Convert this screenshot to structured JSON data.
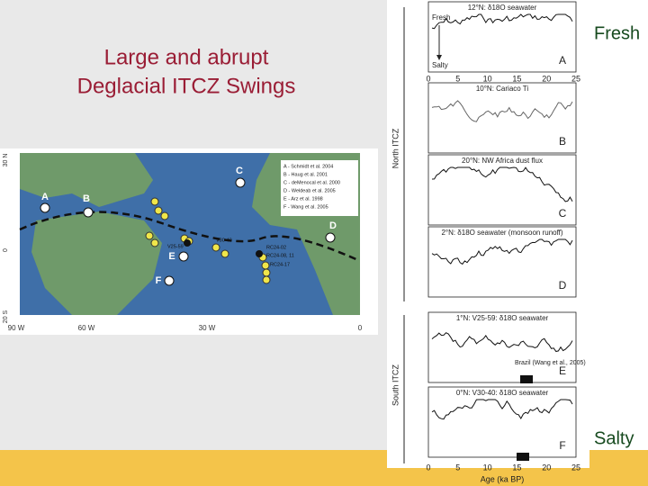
{
  "slide": {
    "title_lines": [
      "Large and abrupt",
      "Deglacial ITCZ Swings"
    ],
    "fresh": "Fresh",
    "salty": "Salty",
    "map": {
      "sites": [
        "A",
        "B",
        "C",
        "D",
        "E",
        "F"
      ],
      "legend": [
        "A - Schmidt et al. 2004",
        "B - Haug et al. 2001",
        "C - deMenocal et al. 2000",
        "D - Weldeab et al. 2005",
        "E - Arz et al. 1998",
        "F - Wang et al. 2005"
      ],
      "cores": [
        "V30-40",
        "V25-59",
        "RC24-02",
        "RC24-08, 11",
        "RC24-17"
      ],
      "lat_ticks": [
        "30 N",
        "0",
        "20 S"
      ],
      "lon_ticks": [
        "90 W",
        "60 W",
        "30 W",
        "0"
      ]
    },
    "figure": {
      "panels": [
        {
          "title": "12°N: δ18O seawater",
          "letter": "A"
        },
        {
          "title": "10°N: Cariaco Ti",
          "letter": "B"
        },
        {
          "title": "20°N: NW Africa dust flux",
          "letter": "C"
        },
        {
          "title": "2°N: δ18O seawater (monsoon runoff)",
          "letter": "D"
        },
        {
          "title": "1°N: V25-59: δ18O seawater",
          "letter": "E"
        },
        {
          "title": "0°N: V30-40: δ18O seawater",
          "letter": "F"
        }
      ],
      "arrow_fresh": "Fresh",
      "arrow_salty": "Salty",
      "brazil_note": "Brazil (Wang et al., 2005)",
      "side_labels": [
        "North ITCZ",
        "South ITCZ"
      ],
      "x_ticks": [
        "0",
        "5",
        "10",
        "15",
        "20",
        "25"
      ],
      "x_label": "Age (ka BP)"
    }
  }
}
